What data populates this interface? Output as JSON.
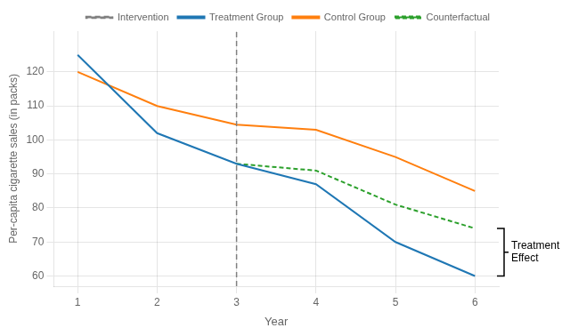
{
  "chart_data": {
    "type": "line",
    "xlabel": "Year",
    "ylabel": "Per-capita cigarette sales (in packs)",
    "x": [
      1,
      2,
      3,
      4,
      5,
      6
    ],
    "series": [
      {
        "name": "Treatment Group",
        "color": "#1f77b4",
        "line_style": "solid",
        "values": [
          125,
          102,
          93,
          87,
          70,
          60
        ]
      },
      {
        "name": "Control Group",
        "color": "#ff7f0e",
        "line_style": "solid",
        "values": [
          120,
          110,
          104.5,
          103,
          95,
          85
        ]
      },
      {
        "name": "Counterfactual",
        "color": "#2ca02c",
        "line_style": "dashed",
        "values": [
          null,
          null,
          93,
          91,
          81,
          74
        ]
      }
    ],
    "vlines": [
      {
        "name": "Intervention",
        "x": 3,
        "color": "#808080",
        "line_style": "dashed"
      }
    ],
    "annotations": [
      {
        "text": "Treatment\nEffect",
        "y_top": 74,
        "y_bottom": 60
      }
    ],
    "xlim": [
      0.7,
      6.3
    ],
    "ylim": [
      57,
      132
    ],
    "xticks": [
      1,
      2,
      3,
      4,
      5,
      6
    ],
    "yticks": [
      60,
      70,
      80,
      90,
      100,
      110,
      120
    ],
    "grid": true,
    "legend": "upper right"
  }
}
